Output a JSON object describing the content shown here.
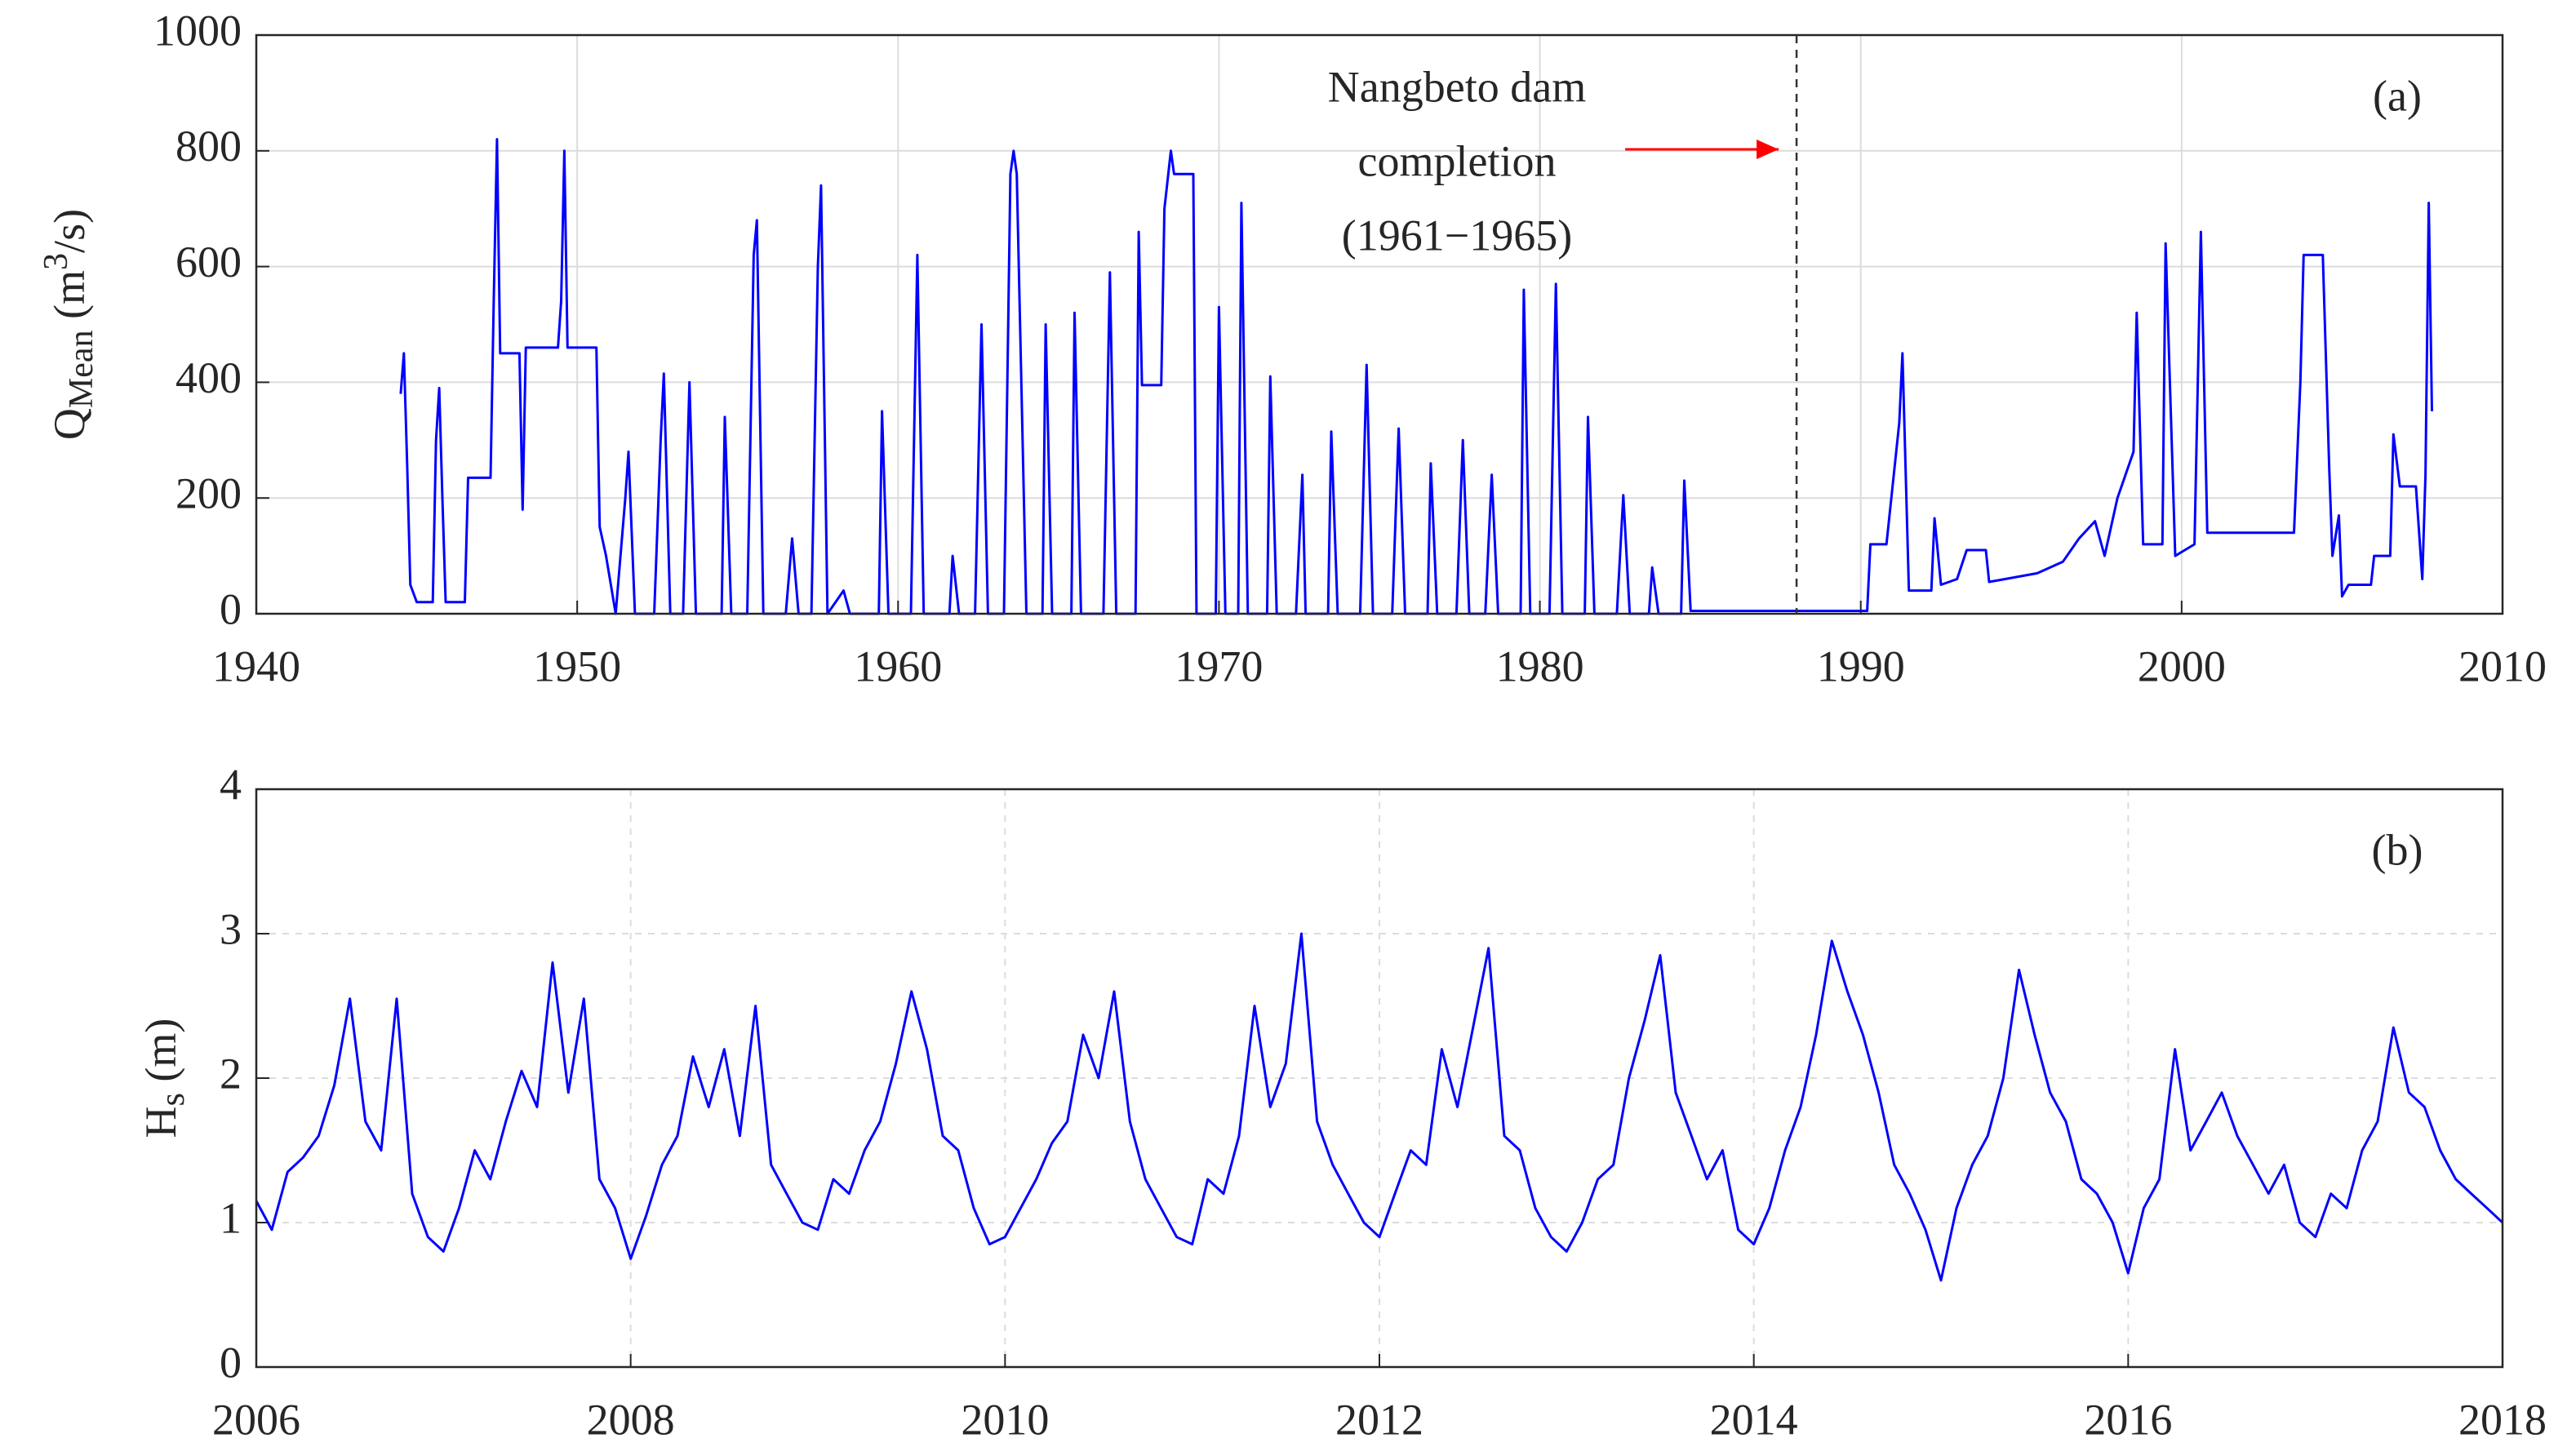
{
  "chart_data": [
    {
      "type": "line",
      "color": "#0000ff",
      "ylabel": [
        "Q",
        "Mean",
        " (m",
        "3",
        "/s)"
      ],
      "annotations": [
        "Nangbeto dam",
        "completion",
        "(1961−1965)"
      ],
      "panel_label": "(a)",
      "vline": 1988,
      "xlim": [
        1940,
        2010
      ],
      "xticks": [
        1940,
        1950,
        1960,
        1970,
        1980,
        1990,
        2000,
        2010
      ],
      "ylim": [
        0,
        1000
      ],
      "yticks": [
        0,
        200,
        400,
        600,
        800,
        1000
      ],
      "grid": true,
      "grid_style": "solid",
      "x": [
        1944.5,
        1944.6,
        1944.7,
        1944.8,
        1945.0,
        1945.5,
        1945.6,
        1945.7,
        1945.8,
        1945.9,
        1946.5,
        1946.6,
        1947.3,
        1947.4,
        1947.5,
        1947.6,
        1948.2,
        1948.3,
        1948.4,
        1949.4,
        1949.5,
        1949.6,
        1949.7,
        1950.6,
        1950.7,
        1950.9,
        1951.2,
        1951.5,
        1951.6,
        1951.8,
        1952.4,
        1952.6,
        1952.7,
        1952.9,
        1953.3,
        1953.5,
        1953.7,
        1954.5,
        1954.6,
        1954.8,
        1955.3,
        1955.5,
        1955.6,
        1955.8,
        1956.5,
        1956.7,
        1956.9,
        1957.3,
        1957.5,
        1957.6,
        1957.8,
        1958.3,
        1958.5,
        1959.4,
        1959.5,
        1959.7,
        1960.4,
        1960.6,
        1960.8,
        1961.6,
        1961.7,
        1961.9,
        1962.4,
        1962.6,
        1962.8,
        1963.3,
        1963.5,
        1963.6,
        1963.7,
        1964.0,
        1964.5,
        1964.6,
        1964.8,
        1965.4,
        1965.5,
        1965.7,
        1966.4,
        1966.6,
        1966.8,
        1967.4,
        1967.5,
        1967.6,
        1968.2,
        1968.3,
        1968.5,
        1968.6,
        1969.2,
        1969.3,
        1969.9,
        1970.0,
        1970.2,
        1970.6,
        1970.7,
        1970.9,
        1971.5,
        1971.6,
        1971.8,
        1972.4,
        1972.6,
        1972.7,
        1973.4,
        1973.5,
        1973.7,
        1974.4,
        1974.6,
        1974.8,
        1975.4,
        1975.6,
        1975.8,
        1976.5,
        1976.6,
        1976.8,
        1977.4,
        1977.6,
        1977.8,
        1978.3,
        1978.5,
        1978.7,
        1979.4,
        1979.5,
        1979.7,
        1980.3,
        1980.5,
        1980.7,
        1981.4,
        1981.5,
        1981.7,
        1982.4,
        1982.6,
        1982.8,
        1983.4,
        1983.5,
        1983.7,
        1984.4,
        1984.5,
        1984.7,
        1990.2,
        1990.3,
        1990.8,
        1991.2,
        1991.3,
        1991.5,
        1992.2,
        1992.3,
        1992.5,
        1993.0,
        1993.3,
        1993.9,
        1994.0,
        1994.5,
        1995.5,
        1996.3,
        1996.8,
        1997.3,
        1997.6,
        1998.0,
        1998.5,
        1998.6,
        1998.8,
        1999.4,
        1999.5,
        1999.8,
        2000.4,
        2000.6,
        2000.8,
        2003.5,
        2003.7,
        2003.8,
        2004.4,
        2004.6,
        2004.7,
        2004.9,
        2005.0,
        2005.2,
        2005.9,
        2006.0,
        2006.5,
        2006.6,
        2006.8,
        2007.3,
        2007.5,
        2007.6,
        2007.7,
        2007.8
      ],
      "values": [
        380,
        450,
        260,
        50,
        20,
        20,
        300,
        390,
        200,
        20,
        20,
        235,
        235,
        540,
        820,
        450,
        450,
        180,
        460,
        460,
        540,
        800,
        460,
        460,
        150,
        100,
        0,
        200,
        280,
        0,
        0,
        300,
        415,
        0,
        0,
        400,
        0,
        0,
        340,
        0,
        0,
        620,
        680,
        0,
        0,
        130,
        0,
        0,
        600,
        740,
        0,
        40,
        0,
        0,
        350,
        0,
        0,
        620,
        0,
        0,
        100,
        0,
        0,
        500,
        0,
        0,
        760,
        800,
        760,
        0,
        0,
        500,
        0,
        0,
        520,
        0,
        0,
        590,
        0,
        0,
        660,
        395,
        395,
        700,
        800,
        760,
        760,
        0,
        0,
        530,
        0,
        0,
        710,
        0,
        0,
        410,
        0,
        0,
        240,
        0,
        0,
        315,
        0,
        0,
        430,
        0,
        0,
        320,
        0,
        0,
        260,
        0,
        0,
        300,
        0,
        0,
        240,
        0,
        0,
        560,
        0,
        0,
        570,
        0,
        0,
        340,
        0,
        0,
        205,
        0,
        0,
        80,
        0,
        0,
        230,
        5,
        5,
        120,
        120,
        330,
        450,
        40,
        40,
        165,
        50,
        60,
        110,
        110,
        55,
        60,
        70,
        90,
        130,
        160,
        100,
        200,
        280,
        520,
        120,
        120,
        640,
        100,
        120,
        660,
        140,
        140,
        400,
        620,
        620,
        250,
        100,
        170,
        30,
        50,
        50,
        100,
        100,
        310,
        220,
        220,
        60,
        240,
        710,
        350
      ]
    },
    {
      "type": "line",
      "color": "#0000ff",
      "ylabel": [
        "H",
        "s",
        " (m)"
      ],
      "panel_label": "(b)",
      "xlim": [
        2006,
        2018
      ],
      "xticks": [
        2006,
        2008,
        2010,
        2012,
        2014,
        2016,
        2018
      ],
      "ylim": [
        0,
        4
      ],
      "yticks": [
        0,
        1,
        2,
        3,
        4
      ],
      "grid": true,
      "grid_style": "dashed",
      "x": [
        2006,
        2006.083,
        2006.167,
        2006.25,
        2006.333,
        2006.417,
        2006.5,
        2006.583,
        2006.667,
        2006.75,
        2006.833,
        2006.917,
        2007,
        2007.083,
        2007.167,
        2007.25,
        2007.333,
        2007.417,
        2007.5,
        2007.583,
        2007.667,
        2007.75,
        2007.833,
        2007.917,
        2008,
        2008.083,
        2008.167,
        2008.25,
        2008.333,
        2008.417,
        2008.5,
        2008.583,
        2008.667,
        2008.75,
        2008.833,
        2008.917,
        2009,
        2009.083,
        2009.167,
        2009.25,
        2009.333,
        2009.417,
        2009.5,
        2009.583,
        2009.667,
        2009.75,
        2009.833,
        2009.917,
        2010,
        2010.083,
        2010.167,
        2010.25,
        2010.333,
        2010.417,
        2010.5,
        2010.583,
        2010.667,
        2010.75,
        2010.833,
        2010.917,
        2011,
        2011.083,
        2011.167,
        2011.25,
        2011.333,
        2011.417,
        2011.5,
        2011.583,
        2011.667,
        2011.75,
        2011.833,
        2011.917,
        2012,
        2012.083,
        2012.167,
        2012.25,
        2012.333,
        2012.417,
        2012.5,
        2012.583,
        2012.667,
        2012.75,
        2012.833,
        2012.917,
        2013,
        2013.083,
        2013.167,
        2013.25,
        2013.333,
        2013.417,
        2013.5,
        2013.583,
        2013.667,
        2013.75,
        2013.833,
        2013.917,
        2014,
        2014.083,
        2014.167,
        2014.25,
        2014.333,
        2014.417,
        2014.5,
        2014.583,
        2014.667,
        2014.75,
        2014.833,
        2014.917,
        2015,
        2015.083,
        2015.167,
        2015.25,
        2015.333,
        2015.417,
        2015.5,
        2015.583,
        2015.667,
        2015.75,
        2015.833,
        2015.917,
        2016,
        2016.083,
        2016.167,
        2016.25,
        2016.333,
        2016.417,
        2016.5,
        2016.583,
        2016.667,
        2016.75,
        2016.833,
        2016.917,
        2017,
        2017.083,
        2017.167,
        2017.25,
        2017.333,
        2017.417,
        2017.5,
        2017.583,
        2017.667,
        2017.75,
        2017.833,
        2017.917,
        2018
      ],
      "values": [
        1.15,
        0.95,
        1.35,
        1.45,
        1.6,
        1.95,
        2.55,
        1.7,
        1.5,
        2.55,
        1.2,
        0.9,
        0.8,
        1.1,
        1.5,
        1.3,
        1.7,
        2.05,
        1.8,
        2.8,
        1.9,
        2.55,
        1.3,
        1.1,
        0.75,
        1.05,
        1.4,
        1.6,
        2.15,
        1.8,
        2.2,
        1.6,
        2.5,
        1.4,
        1.2,
        1.0,
        0.95,
        1.3,
        1.2,
        1.5,
        1.7,
        2.1,
        2.6,
        2.2,
        1.6,
        1.5,
        1.1,
        0.85,
        0.9,
        1.1,
        1.3,
        1.55,
        1.7,
        2.3,
        2.0,
        2.6,
        1.7,
        1.3,
        1.1,
        0.9,
        0.85,
        1.3,
        1.2,
        1.6,
        2.5,
        1.8,
        2.1,
        3.0,
        1.7,
        1.4,
        1.2,
        1.0,
        0.9,
        1.2,
        1.5,
        1.4,
        2.2,
        1.8,
        2.35,
        2.9,
        1.6,
        1.5,
        1.1,
        0.9,
        0.8,
        1.0,
        1.3,
        1.4,
        2.0,
        2.4,
        2.85,
        1.9,
        1.6,
        1.3,
        1.5,
        0.95,
        0.85,
        1.1,
        1.5,
        1.8,
        2.3,
        2.95,
        2.6,
        2.3,
        1.9,
        1.4,
        1.2,
        0.95,
        0.6,
        1.1,
        1.4,
        1.6,
        2.0,
        2.75,
        2.3,
        1.9,
        1.7,
        1.3,
        1.2,
        1.0,
        0.65,
        1.1,
        1.3,
        2.2,
        1.5,
        1.7,
        1.9,
        1.6,
        1.4,
        1.2,
        1.4,
        1.0,
        0.9,
        1.2,
        1.1,
        1.5,
        1.7,
        2.35,
        1.9,
        1.8,
        1.5,
        1.3,
        1.2,
        1.1,
        1.0
      ]
    }
  ]
}
